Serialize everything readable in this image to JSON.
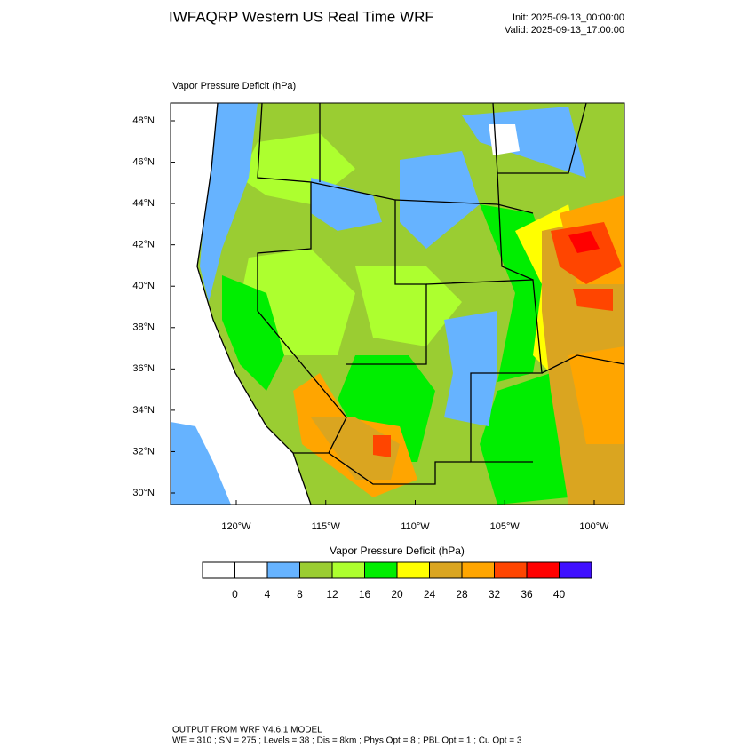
{
  "header": {
    "title": "IWFAQRP Western US Real Time WRF",
    "init": "Init: 2025-09-13_00:00:00",
    "valid": "Valid: 2025-09-13_17:00:00"
  },
  "map": {
    "label": "Vapor Pressure Deficit   (hPa)",
    "lat_ticks": [
      {
        "value": 48,
        "label": "48°N"
      },
      {
        "value": 46,
        "label": "46°N"
      },
      {
        "value": 44,
        "label": "44°N"
      },
      {
        "value": 42,
        "label": "42°N"
      },
      {
        "value": 40,
        "label": "40°N"
      },
      {
        "value": 38,
        "label": "38°N"
      },
      {
        "value": 36,
        "label": "36°N"
      },
      {
        "value": 34,
        "label": "34°N"
      },
      {
        "value": 32,
        "label": "32°N"
      },
      {
        "value": 30,
        "label": "30°N"
      }
    ],
    "lon_ticks": [
      {
        "value": -120,
        "label": "120°W"
      },
      {
        "value": -115,
        "label": "115°W"
      },
      {
        "value": -110,
        "label": "110°W"
      },
      {
        "value": -105,
        "label": "105°W"
      },
      {
        "value": -100,
        "label": "100°W"
      }
    ]
  },
  "colorbar": {
    "title": "Vapor Pressure Deficit  (hPa)",
    "levels": [
      0,
      4,
      8,
      12,
      16,
      20,
      24,
      28,
      32,
      36,
      40
    ],
    "colors": [
      "#ffffff",
      "#ffffff",
      "#66b3ff",
      "#9acd32",
      "#adff2f",
      "#00ee00",
      "#ffff00",
      "#daa520",
      "#ffa500",
      "#ff4500",
      "#ff0000",
      "#4010ff"
    ]
  },
  "footer": {
    "lines": [
      "OUTPUT FROM WRF V4.6.1 MODEL",
      "WE = 310 ; SN = 275 ; Levels = 38 ; Dis = 8km ; Phys Opt = 8 ; PBL Opt = 1 ; Cu Opt = 3"
    ]
  }
}
